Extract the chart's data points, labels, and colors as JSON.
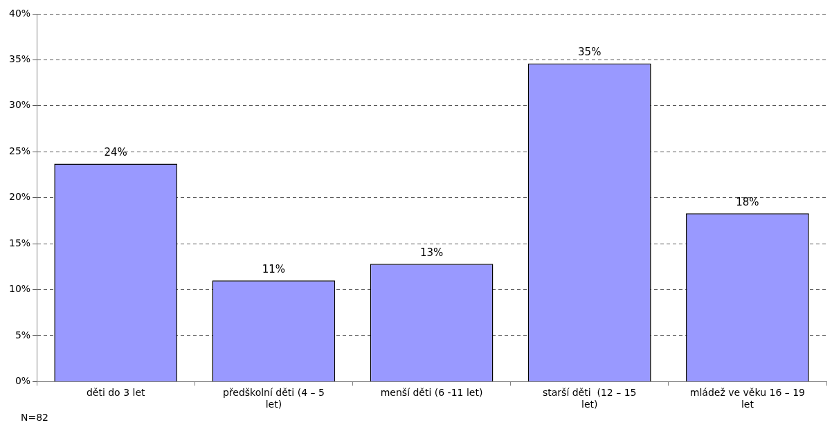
{
  "chart_data": {
    "type": "bar",
    "categories": [
      "děti do 3 let",
      "předškolní děti (4 – 5 let)",
      "menší děti (6 -11 let)",
      "starší děti  (12 – 15 let)",
      "mládež ve věku 16 – 19 let"
    ],
    "values": [
      23.7,
      11.0,
      12.8,
      34.6,
      18.3
    ],
    "value_labels": [
      "24%",
      "11%",
      "13%",
      "35%",
      "18%"
    ],
    "color": "#9999ff",
    "ylim": [
      0,
      40
    ],
    "yticks": [
      {
        "value": 0,
        "label": "0%"
      },
      {
        "value": 5,
        "label": "5%"
      },
      {
        "value": 10,
        "label": "10%"
      },
      {
        "value": 15,
        "label": "15%"
      },
      {
        "value": 20,
        "label": "20%"
      },
      {
        "value": 25,
        "label": "25%"
      },
      {
        "value": 30,
        "label": "30%"
      },
      {
        "value": 35,
        "label": "35%"
      },
      {
        "value": 40,
        "label": "40%"
      }
    ],
    "grid": "y",
    "line_style": "dashed",
    "legend": false,
    "annotations": [
      "N=82"
    ]
  }
}
